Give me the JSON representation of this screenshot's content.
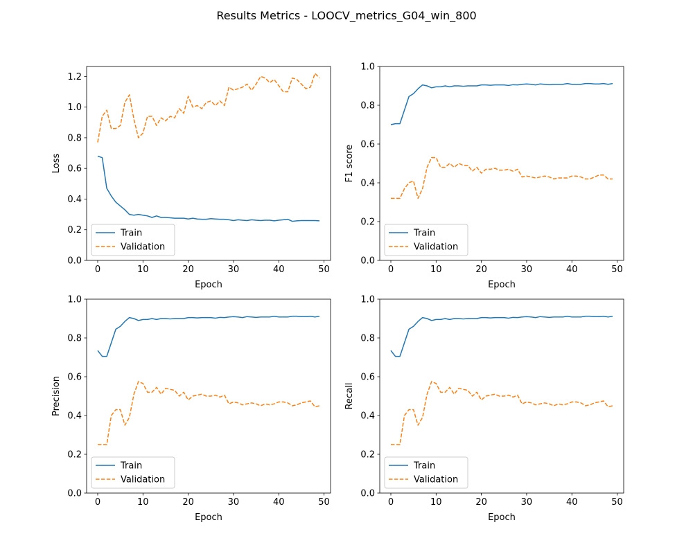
{
  "figure": {
    "title": "Results Metrics - LOOCV_metrics_G04_win_800"
  },
  "chart_data": [
    {
      "type": "line",
      "ylabel": "Loss",
      "xlabel": "Epoch",
      "xlim": [
        -2.45,
        51.45
      ],
      "ylim": [
        0,
        1.265
      ],
      "xticks": [
        0,
        10,
        20,
        30,
        40,
        50
      ],
      "yticks": [
        0.0,
        0.2,
        0.4,
        0.6,
        0.8,
        1.0,
        1.2
      ],
      "ytick_labels": [
        "0.0",
        "0.2",
        "0.4",
        "0.6",
        "0.8",
        "1.0",
        "1.2"
      ],
      "legend": "lower-left",
      "series": [
        {
          "name": "Train",
          "color": "#1f77b4",
          "style": "solid",
          "values": [
            0.68,
            0.67,
            0.47,
            0.42,
            0.38,
            0.355,
            0.33,
            0.3,
            0.295,
            0.3,
            0.295,
            0.29,
            0.28,
            0.29,
            0.28,
            0.28,
            0.278,
            0.275,
            0.275,
            0.275,
            0.27,
            0.275,
            0.27,
            0.268,
            0.268,
            0.272,
            0.27,
            0.268,
            0.268,
            0.265,
            0.26,
            0.265,
            0.262,
            0.26,
            0.265,
            0.262,
            0.26,
            0.262,
            0.262,
            0.258,
            0.262,
            0.265,
            0.268,
            0.255,
            0.258,
            0.26,
            0.26,
            0.26,
            0.26,
            0.258
          ]
        },
        {
          "name": "Validation",
          "color": "#ff7f0e",
          "style": "dashed",
          "values": [
            0.77,
            0.94,
            0.98,
            0.86,
            0.86,
            0.88,
            1.03,
            1.08,
            0.92,
            0.8,
            0.83,
            0.94,
            0.94,
            0.88,
            0.93,
            0.91,
            0.94,
            0.93,
            0.99,
            0.96,
            1.07,
            1.0,
            1.01,
            0.99,
            1.03,
            1.04,
            1.01,
            1.04,
            1.01,
            1.13,
            1.11,
            1.12,
            1.13,
            1.15,
            1.11,
            1.15,
            1.2,
            1.19,
            1.16,
            1.18,
            1.14,
            1.1,
            1.1,
            1.19,
            1.18,
            1.15,
            1.12,
            1.13,
            1.22,
            1.19
          ]
        }
      ]
    },
    {
      "type": "line",
      "ylabel": "F1 score",
      "xlabel": "Epoch",
      "xlim": [
        -2.45,
        51.45
      ],
      "ylim": [
        0,
        1.0
      ],
      "xticks": [
        0,
        10,
        20,
        30,
        40,
        50
      ],
      "yticks": [
        0.0,
        0.2,
        0.4,
        0.6,
        0.8,
        1.0
      ],
      "ytick_labels": [
        "0.0",
        "0.2",
        "0.4",
        "0.6",
        "0.8",
        "1.0"
      ],
      "legend": "lower-left",
      "series": [
        {
          "name": "Train",
          "color": "#1f77b4",
          "style": "solid",
          "values": [
            0.7,
            0.705,
            0.705,
            0.775,
            0.845,
            0.86,
            0.885,
            0.905,
            0.9,
            0.89,
            0.895,
            0.895,
            0.9,
            0.895,
            0.9,
            0.9,
            0.898,
            0.9,
            0.9,
            0.9,
            0.905,
            0.905,
            0.903,
            0.905,
            0.905,
            0.905,
            0.902,
            0.906,
            0.905,
            0.908,
            0.91,
            0.908,
            0.905,
            0.91,
            0.908,
            0.906,
            0.908,
            0.908,
            0.908,
            0.912,
            0.908,
            0.908,
            0.908,
            0.912,
            0.912,
            0.91,
            0.91,
            0.912,
            0.908,
            0.912
          ]
        },
        {
          "name": "Validation",
          "color": "#ff7f0e",
          "style": "dashed",
          "values": [
            0.32,
            0.32,
            0.32,
            0.37,
            0.4,
            0.41,
            0.32,
            0.37,
            0.48,
            0.53,
            0.53,
            0.48,
            0.48,
            0.5,
            0.48,
            0.5,
            0.49,
            0.49,
            0.46,
            0.48,
            0.45,
            0.47,
            0.47,
            0.475,
            0.465,
            0.465,
            0.47,
            0.46,
            0.47,
            0.43,
            0.435,
            0.43,
            0.425,
            0.43,
            0.435,
            0.43,
            0.42,
            0.425,
            0.425,
            0.425,
            0.435,
            0.435,
            0.43,
            0.42,
            0.42,
            0.43,
            0.44,
            0.44,
            0.42,
            0.42
          ]
        }
      ]
    },
    {
      "type": "line",
      "ylabel": "Precision",
      "xlabel": "Epoch",
      "xlim": [
        -2.45,
        51.45
      ],
      "ylim": [
        0,
        1.0
      ],
      "xticks": [
        0,
        10,
        20,
        30,
        40,
        50
      ],
      "yticks": [
        0.0,
        0.2,
        0.4,
        0.6,
        0.8,
        1.0
      ],
      "ytick_labels": [
        "0.0",
        "0.2",
        "0.4",
        "0.6",
        "0.8",
        "1.0"
      ],
      "legend": "lower-left",
      "series": [
        {
          "name": "Train",
          "color": "#1f77b4",
          "style": "solid",
          "values": [
            0.735,
            0.705,
            0.705,
            0.775,
            0.845,
            0.86,
            0.885,
            0.905,
            0.9,
            0.89,
            0.895,
            0.895,
            0.9,
            0.895,
            0.9,
            0.9,
            0.898,
            0.9,
            0.9,
            0.9,
            0.905,
            0.905,
            0.903,
            0.905,
            0.905,
            0.905,
            0.902,
            0.906,
            0.905,
            0.908,
            0.91,
            0.908,
            0.905,
            0.91,
            0.908,
            0.906,
            0.908,
            0.908,
            0.908,
            0.912,
            0.908,
            0.908,
            0.908,
            0.912,
            0.912,
            0.91,
            0.91,
            0.912,
            0.908,
            0.912
          ]
        },
        {
          "name": "Validation",
          "color": "#ff7f0e",
          "style": "dashed",
          "values": [
            0.25,
            0.25,
            0.25,
            0.4,
            0.43,
            0.43,
            0.35,
            0.39,
            0.51,
            0.575,
            0.565,
            0.52,
            0.52,
            0.545,
            0.51,
            0.54,
            0.535,
            0.53,
            0.5,
            0.52,
            0.48,
            0.5,
            0.505,
            0.51,
            0.5,
            0.5,
            0.505,
            0.495,
            0.505,
            0.46,
            0.47,
            0.465,
            0.455,
            0.46,
            0.465,
            0.46,
            0.45,
            0.46,
            0.455,
            0.46,
            0.47,
            0.47,
            0.465,
            0.45,
            0.455,
            0.465,
            0.47,
            0.475,
            0.445,
            0.45
          ]
        }
      ]
    },
    {
      "type": "line",
      "ylabel": "Recall",
      "xlabel": "Epoch",
      "xlim": [
        -2.45,
        51.45
      ],
      "ylim": [
        0,
        1.0
      ],
      "xticks": [
        0,
        10,
        20,
        30,
        40,
        50
      ],
      "yticks": [
        0.0,
        0.2,
        0.4,
        0.6,
        0.8,
        1.0
      ],
      "ytick_labels": [
        "0.0",
        "0.2",
        "0.4",
        "0.6",
        "0.8",
        "1.0"
      ],
      "legend": "lower-left",
      "series": [
        {
          "name": "Train",
          "color": "#1f77b4",
          "style": "solid",
          "values": [
            0.735,
            0.705,
            0.705,
            0.775,
            0.845,
            0.86,
            0.885,
            0.905,
            0.9,
            0.89,
            0.895,
            0.895,
            0.9,
            0.895,
            0.9,
            0.9,
            0.898,
            0.9,
            0.9,
            0.9,
            0.905,
            0.905,
            0.903,
            0.905,
            0.905,
            0.905,
            0.902,
            0.906,
            0.905,
            0.908,
            0.91,
            0.908,
            0.905,
            0.91,
            0.908,
            0.906,
            0.908,
            0.908,
            0.908,
            0.912,
            0.908,
            0.908,
            0.908,
            0.912,
            0.912,
            0.91,
            0.91,
            0.912,
            0.908,
            0.912
          ]
        },
        {
          "name": "Validation",
          "color": "#ff7f0e",
          "style": "dashed",
          "values": [
            0.25,
            0.25,
            0.25,
            0.4,
            0.43,
            0.43,
            0.35,
            0.39,
            0.51,
            0.575,
            0.565,
            0.52,
            0.52,
            0.545,
            0.51,
            0.54,
            0.535,
            0.53,
            0.5,
            0.52,
            0.48,
            0.5,
            0.505,
            0.51,
            0.5,
            0.5,
            0.505,
            0.495,
            0.505,
            0.46,
            0.47,
            0.465,
            0.455,
            0.46,
            0.465,
            0.46,
            0.45,
            0.46,
            0.455,
            0.46,
            0.47,
            0.47,
            0.465,
            0.45,
            0.455,
            0.465,
            0.47,
            0.475,
            0.445,
            0.45
          ]
        }
      ]
    }
  ]
}
